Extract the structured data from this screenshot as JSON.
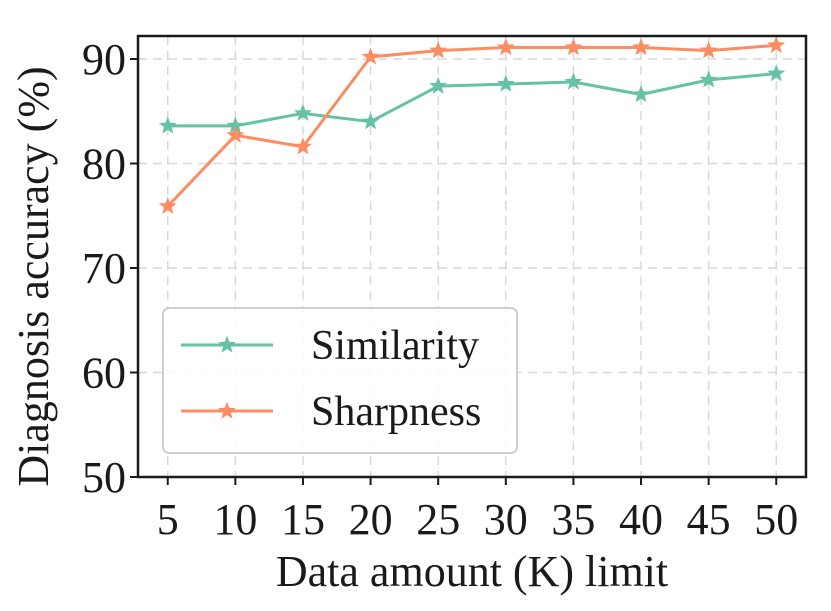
{
  "chart_data": {
    "type": "line",
    "title": "",
    "xlabel": "Data amount (K) limit",
    "ylabel": "Diagnosis accuracy (%)",
    "x": [
      5,
      10,
      15,
      20,
      25,
      30,
      35,
      40,
      45,
      50
    ],
    "x_tick_labels": [
      "5",
      "10",
      "15",
      "20",
      "25",
      "30",
      "35",
      "40",
      "45",
      "50"
    ],
    "y_ticks": [
      50,
      60,
      70,
      80,
      90
    ],
    "y_tick_labels": [
      "50",
      "60",
      "70",
      "80",
      "90"
    ],
    "xlim": [
      2.8,
      52.2
    ],
    "ylim": [
      50,
      92.2
    ],
    "grid": true,
    "legend_position": "lower-left",
    "series": [
      {
        "name": "Similarity",
        "color": "#66c2a5",
        "marker": "star",
        "values": [
          83.6,
          83.6,
          84.8,
          84.0,
          87.4,
          87.6,
          87.8,
          86.6,
          88.0,
          88.6
        ]
      },
      {
        "name": "Sharpness",
        "color": "#fc8d62",
        "marker": "star",
        "values": [
          75.9,
          82.7,
          81.6,
          90.2,
          90.8,
          91.1,
          91.1,
          91.1,
          90.8,
          91.3
        ]
      }
    ]
  }
}
